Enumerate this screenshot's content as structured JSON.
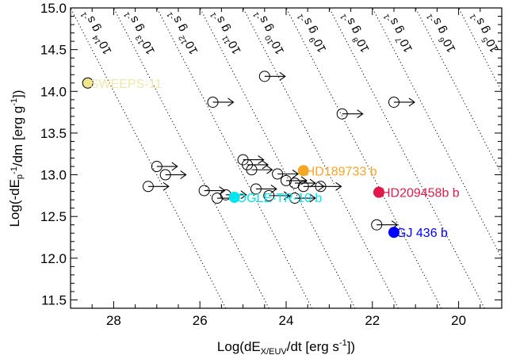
{
  "chart_data": {
    "type": "scatter",
    "xlabel_parts": [
      "Log(dE",
      "X/EUV",
      "/dt [erg s",
      "-1",
      "])"
    ],
    "ylabel_parts": [
      "Log(-dE",
      "p",
      "",
      "-1",
      "/dm [erg g",
      "-1",
      "])"
    ],
    "x_reversed": true,
    "xlim": [
      29.0,
      19.0
    ],
    "ylim": [
      11.4,
      15.0
    ],
    "x_ticks": [
      28,
      26,
      24,
      22,
      20
    ],
    "y_ticks": [
      11.5,
      12.0,
      12.5,
      13.0,
      13.5,
      14.0,
      14.5,
      15.0
    ],
    "x_tick_labels": [
      "28",
      "26",
      "24",
      "22",
      "20"
    ],
    "y_tick_labels": [
      "11.5",
      "12.0",
      "12.5",
      "13.0",
      "13.5",
      "14.0",
      "14.5",
      "15.0"
    ],
    "mass_loss_lines": [
      {
        "log_mdot": 14,
        "mantissa": "10",
        "exponent": "14",
        "unit": "g s",
        "unit_exp": "-1",
        "label_x": 28.3,
        "label_y": 14.73
      },
      {
        "log_mdot": 13,
        "mantissa": "10",
        "exponent": "13",
        "unit": "g s",
        "unit_exp": "-1",
        "label_x": 27.3,
        "label_y": 14.73
      },
      {
        "log_mdot": 12,
        "mantissa": "10",
        "exponent": "12",
        "unit": "g s",
        "unit_exp": "-1",
        "label_x": 26.3,
        "label_y": 14.73
      },
      {
        "log_mdot": 11,
        "mantissa": "10",
        "exponent": "11",
        "unit": "g s",
        "unit_exp": "-1",
        "label_x": 25.3,
        "label_y": 14.73
      },
      {
        "log_mdot": 10,
        "mantissa": "10",
        "exponent": "10",
        "unit": "g s",
        "unit_exp": "-1",
        "label_x": 24.3,
        "label_y": 14.73
      },
      {
        "log_mdot": 9,
        "mantissa": "10",
        "exponent": "9",
        "unit": "g s",
        "unit_exp": "-1",
        "label_x": 23.3,
        "label_y": 14.73
      },
      {
        "log_mdot": 8,
        "mantissa": "10",
        "exponent": "8",
        "unit": "g s",
        "unit_exp": "-1",
        "label_x": 22.3,
        "label_y": 14.73
      },
      {
        "log_mdot": 7,
        "mantissa": "10",
        "exponent": "7",
        "unit": "g s",
        "unit_exp": "-1",
        "label_x": 21.3,
        "label_y": 14.73
      },
      {
        "log_mdot": 6,
        "mantissa": "10",
        "exponent": "6",
        "unit": "g s",
        "unit_exp": "-1",
        "label_x": 20.3,
        "label_y": 14.73
      },
      {
        "log_mdot": 5,
        "mantissa": "10",
        "exponent": "5",
        "unit": "g s",
        "unit_exp": "-1",
        "label_x": 19.3,
        "label_y": 14.73
      }
    ],
    "lower_limits": [
      {
        "x": 24.5,
        "y": 14.18
      },
      {
        "x": 25.7,
        "y": 13.87
      },
      {
        "x": 21.5,
        "y": 13.87
      },
      {
        "x": 22.7,
        "y": 13.73
      },
      {
        "x": 27.0,
        "y": 13.1
      },
      {
        "x": 26.8,
        "y": 13.0
      },
      {
        "x": 27.2,
        "y": 12.86
      },
      {
        "x": 25.9,
        "y": 12.81
      },
      {
        "x": 25.6,
        "y": 12.72
      },
      {
        "x": 25.4,
        "y": 12.76
      },
      {
        "x": 25.0,
        "y": 13.18
      },
      {
        "x": 24.9,
        "y": 13.12
      },
      {
        "x": 24.8,
        "y": 13.06
      },
      {
        "x": 24.2,
        "y": 13.01
      },
      {
        "x": 24.0,
        "y": 12.93
      },
      {
        "x": 23.8,
        "y": 12.9
      },
      {
        "x": 23.6,
        "y": 12.86
      },
      {
        "x": 23.2,
        "y": 12.86
      },
      {
        "x": 24.7,
        "y": 12.83
      },
      {
        "x": 24.4,
        "y": 12.75
      },
      {
        "x": 23.8,
        "y": 12.72
      },
      {
        "x": 21.9,
        "y": 12.4
      }
    ],
    "planets": [
      {
        "name": "SWEEPS-11",
        "x": 28.6,
        "y": 14.1,
        "color": "#f0e68c",
        "edge": "#000000",
        "label_color": "#eee8aa",
        "label_dx": 3,
        "label_dy": 0
      },
      {
        "name": "HD189733 b",
        "x": 23.6,
        "y": 13.05,
        "color": "#f5a623",
        "edge": "#f5a623",
        "label_color": "#f5a623",
        "label_dx": 3,
        "label_dy": 0
      },
      {
        "name": "OGLE-TR-10 b",
        "x": 25.2,
        "y": 12.73,
        "color": "#00e5ee",
        "edge": "#00e5ee",
        "label_color": "#00e5ee",
        "label_dx": 3,
        "label_dy": 0
      },
      {
        "name": "HD209458b b",
        "x": 21.85,
        "y": 12.79,
        "color": "#e0194a",
        "edge": "#e0194a",
        "label_color": "#e0194a",
        "label_dx": 3,
        "label_dy": 0
      },
      {
        "name": "GJ 436 b",
        "x": 21.5,
        "y": 12.31,
        "color": "#0000ff",
        "edge": "#0000ff",
        "label_color": "#0000ff",
        "label_dx": 3,
        "label_dy": 0
      }
    ],
    "grid": false,
    "legend": "none"
  }
}
